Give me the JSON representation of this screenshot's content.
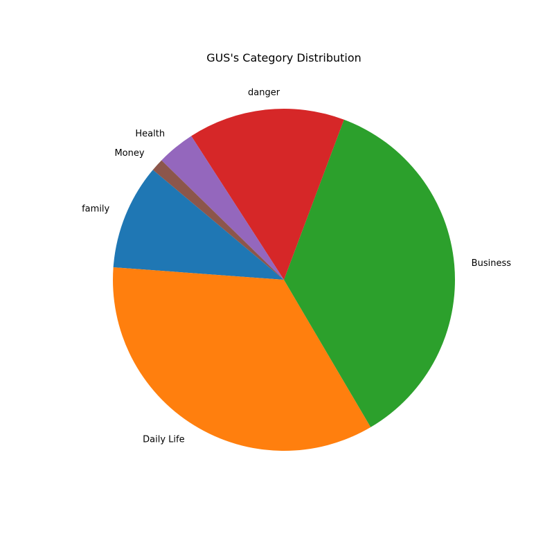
{
  "chart_data": {
    "type": "pie",
    "title": "GUS's Category Distribution",
    "start_angle_deg": 140,
    "direction": "counterclockwise",
    "slices": [
      {
        "label": "family",
        "value": 10.0,
        "color": "#1f77b4"
      },
      {
        "label": "Daily Life",
        "value": 34.8,
        "color": "#ff7f0e"
      },
      {
        "label": "Business",
        "value": 36.0,
        "color": "#2ca02c"
      },
      {
        "label": "danger",
        "value": 14.9,
        "color": "#d62728"
      },
      {
        "label": "Health",
        "value": 3.6,
        "color": "#9467bd"
      },
      {
        "label": "Money",
        "value": 1.2,
        "color": "#8c564b"
      }
    ]
  }
}
